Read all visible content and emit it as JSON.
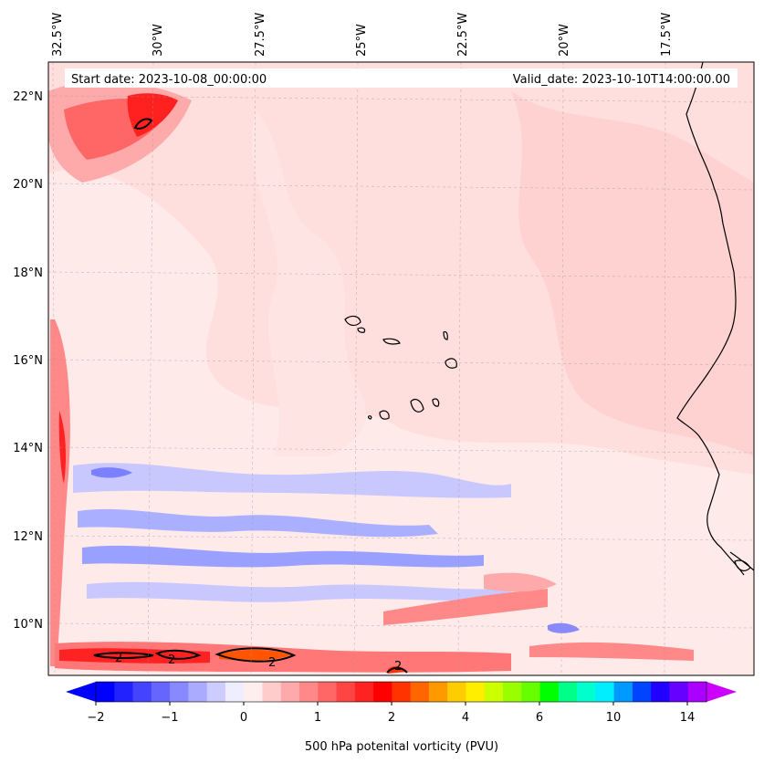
{
  "map": {
    "header": {
      "start_date": "Start date: 2023-10-08_00:00:00",
      "valid_date": "Valid_date: 2023-10-10T14:00:00.00"
    },
    "lon_labels": [
      "32.5°W",
      "30°W",
      "27.5°W",
      "25°W",
      "22.5°W",
      "20°W",
      "17.5°W"
    ],
    "lat_labels": [
      "22°N",
      "20°N",
      "18°N",
      "16°N",
      "14°N",
      "12°N",
      "10°N"
    ],
    "contour_labels": [
      "2",
      "2",
      "2",
      "2"
    ],
    "field": "500 hPa potential vorticity",
    "extent": {
      "lon_min": -33.0,
      "lon_max": -15.5,
      "lat_min": 8.9,
      "lat_max": 22.8
    }
  },
  "colorbar": {
    "label": "500 hPa potenital vorticity (PVU)",
    "tick_labels": [
      "−2",
      "−1",
      "0",
      "1",
      "2",
      "4",
      "6",
      "10",
      "14"
    ],
    "colors": [
      "#0000ff",
      "#2222ff",
      "#4444ff",
      "#6666ff",
      "#8888ff",
      "#aaaaff",
      "#ccccff",
      "#eeeeff",
      "#ffeeee",
      "#ffcccc",
      "#ffaaaa",
      "#ff8888",
      "#ff6666",
      "#ff4444",
      "#ff2222",
      "#ff0000",
      "#ff3300",
      "#ff6600",
      "#ff9900",
      "#ffcc00",
      "#ffee00",
      "#ccff00",
      "#99ff00",
      "#66ff00",
      "#00ff00",
      "#00ff88",
      "#00ffcc",
      "#00eeff",
      "#0099ff",
      "#0044ff",
      "#2200ff",
      "#6600ff",
      "#aa00ff"
    ],
    "under_color": "#0000ff",
    "over_color": "#cc00ff",
    "background_color": "#fff0f0",
    "coast_color": "#000000"
  }
}
